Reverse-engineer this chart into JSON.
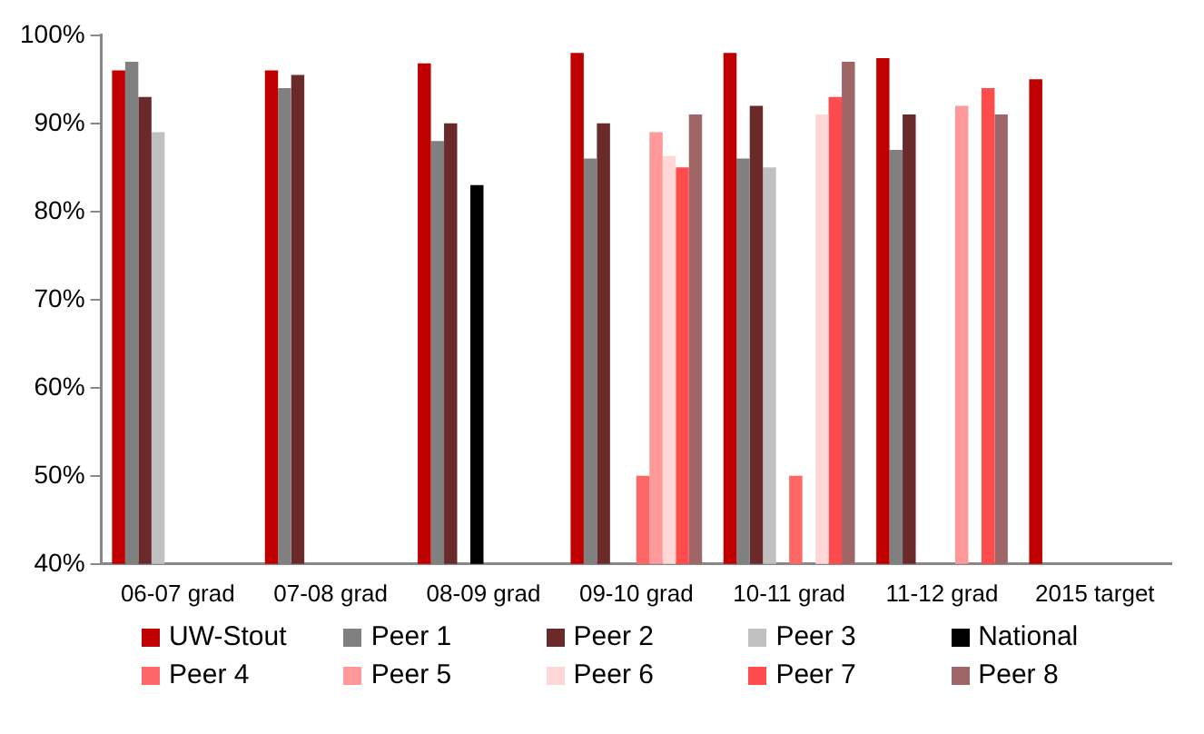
{
  "chart_data": {
    "type": "bar",
    "categories": [
      "06-07 grad",
      "07-08 grad",
      "08-09 grad",
      "09-10 grad",
      "10-11 grad",
      "11-12 grad",
      "2015 target"
    ],
    "series": [
      {
        "name": "UW-Stout",
        "color": "#c00000",
        "values": [
          96,
          96,
          96.8,
          98,
          98,
          97.4,
          95
        ]
      },
      {
        "name": "Peer 1",
        "color": "#808080",
        "values": [
          97,
          94,
          88,
          86,
          86,
          87,
          null
        ]
      },
      {
        "name": "Peer 2",
        "color": "#6b2a2a",
        "values": [
          93,
          95.5,
          90,
          90,
          92,
          91,
          null
        ]
      },
      {
        "name": "Peer 3",
        "color": "#c0c0c0",
        "values": [
          89,
          null,
          null,
          null,
          85,
          null,
          null
        ]
      },
      {
        "name": "National",
        "color": "#000000",
        "values": [
          null,
          null,
          83,
          null,
          null,
          null,
          null
        ]
      },
      {
        "name": "Peer 4",
        "color": "#ff6666",
        "values": [
          null,
          null,
          null,
          50,
          50,
          null,
          null
        ]
      },
      {
        "name": "Peer 5",
        "color": "#ff9999",
        "values": [
          null,
          null,
          null,
          89,
          null,
          92,
          null
        ]
      },
      {
        "name": "Peer 6",
        "color": "#ffd7d7",
        "values": [
          null,
          null,
          null,
          86.3,
          91,
          null,
          null
        ]
      },
      {
        "name": "Peer 7",
        "color": "#ff4b4b",
        "values": [
          null,
          null,
          null,
          85,
          93,
          94,
          null
        ]
      },
      {
        "name": "Peer 8",
        "color": "#9e6666",
        "values": [
          null,
          null,
          null,
          91,
          97,
          91,
          null
        ]
      }
    ],
    "ylim": [
      40,
      100
    ],
    "yticks": [
      {
        "value": 40,
        "label": "40%"
      },
      {
        "value": 50,
        "label": "50%"
      },
      {
        "value": 60,
        "label": "60%"
      },
      {
        "value": 70,
        "label": "70%"
      },
      {
        "value": 80,
        "label": "80%"
      },
      {
        "value": 90,
        "label": "90%"
      },
      {
        "value": 100,
        "label": "100%"
      }
    ],
    "grid": false,
    "legend": "bottom"
  }
}
